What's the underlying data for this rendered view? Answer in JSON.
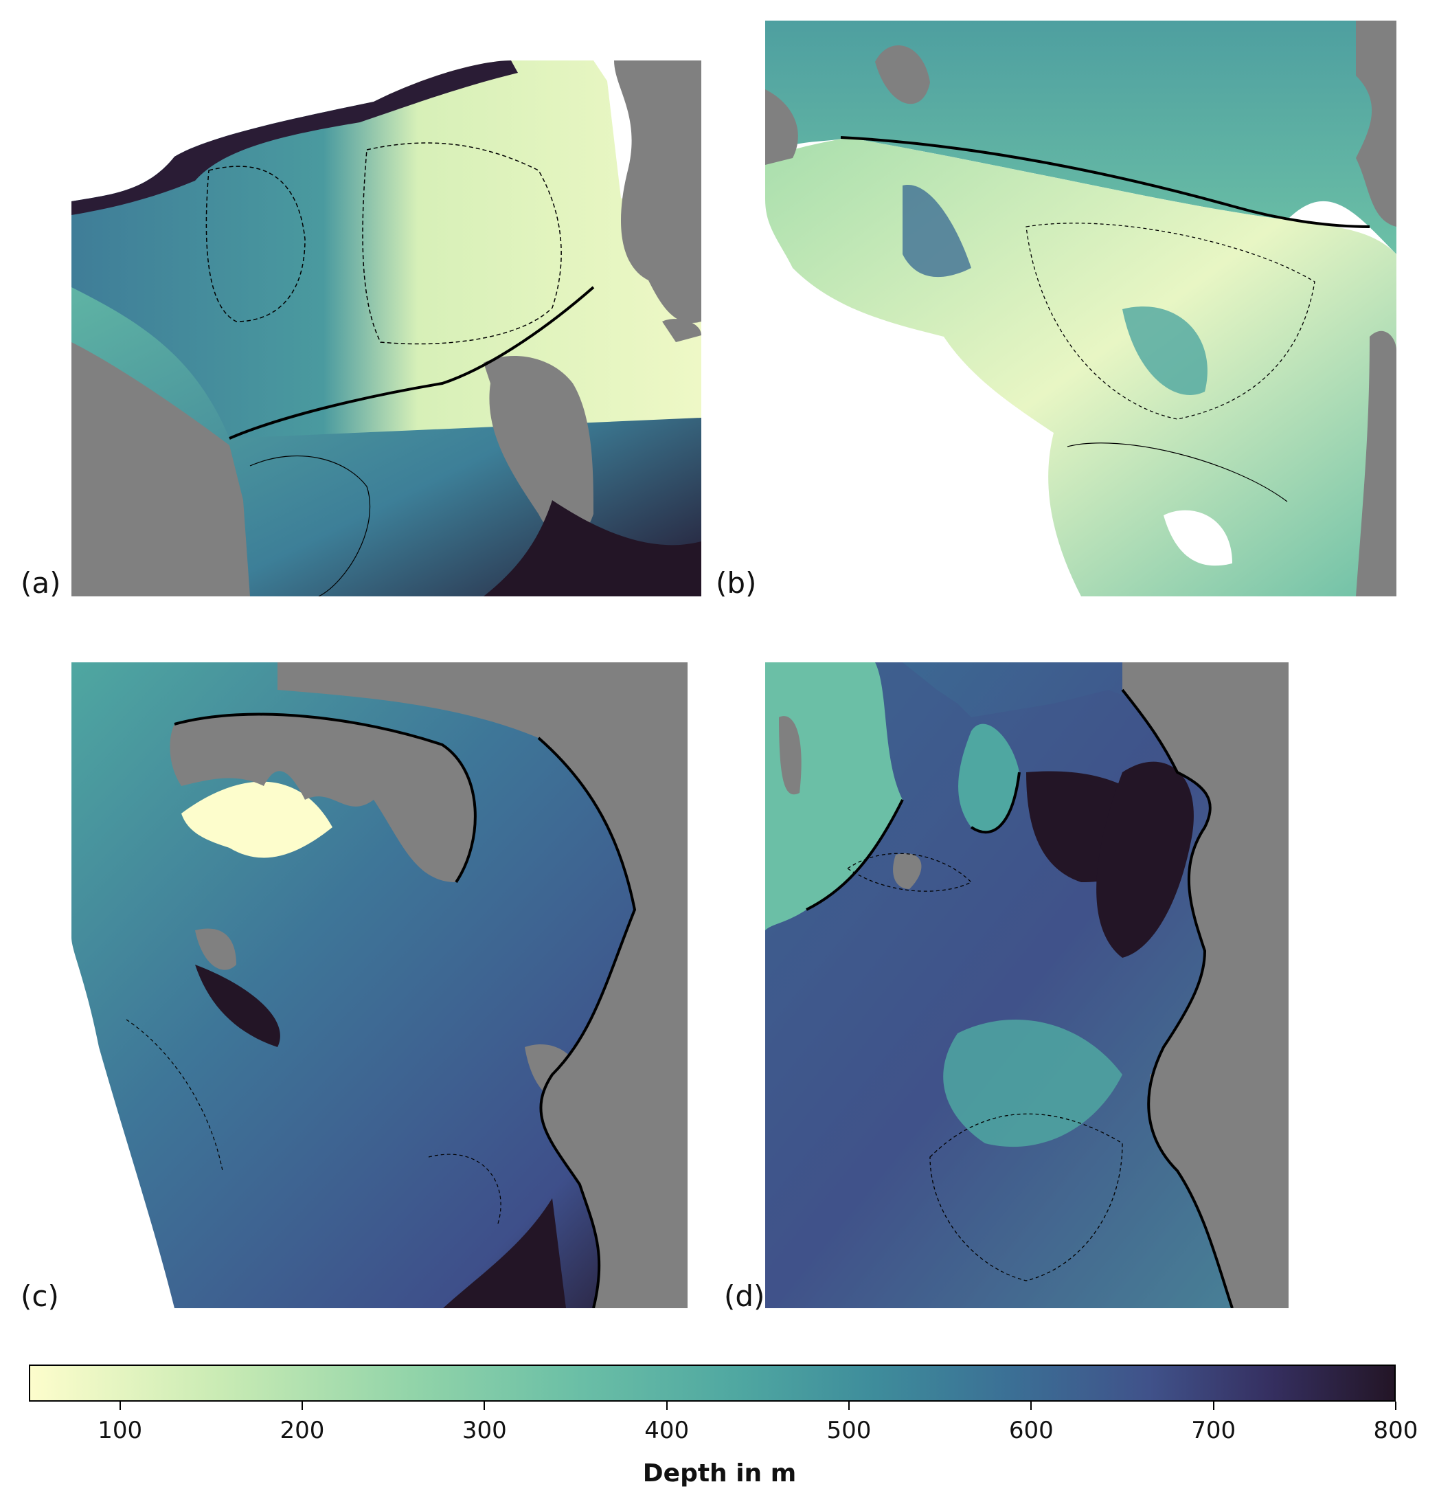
{
  "panels": [
    {
      "id": "a",
      "label": "(a)"
    },
    {
      "id": "b",
      "label": "(b)"
    },
    {
      "id": "c",
      "label": "(c)"
    },
    {
      "id": "d",
      "label": "(d)"
    }
  ],
  "colorbar": {
    "title": "Depth in m",
    "range": [
      50,
      800
    ],
    "ticks": [
      {
        "value": 100,
        "label": "100"
      },
      {
        "value": 200,
        "label": "200"
      },
      {
        "value": 300,
        "label": "300"
      },
      {
        "value": 400,
        "label": "400"
      },
      {
        "value": 500,
        "label": "500"
      },
      {
        "value": 600,
        "label": "600"
      },
      {
        "value": 700,
        "label": "700"
      },
      {
        "value": 800,
        "label": "800"
      }
    ],
    "colormap": [
      "#fdfdcc",
      "#c9ebb4",
      "#92d4a9",
      "#6bbfa6",
      "#4fa7a1",
      "#3e8c9b",
      "#3b6f95",
      "#40528a",
      "#352f60",
      "#231526"
    ]
  },
  "colors": {
    "land": "#808080",
    "contour": "#000000"
  }
}
